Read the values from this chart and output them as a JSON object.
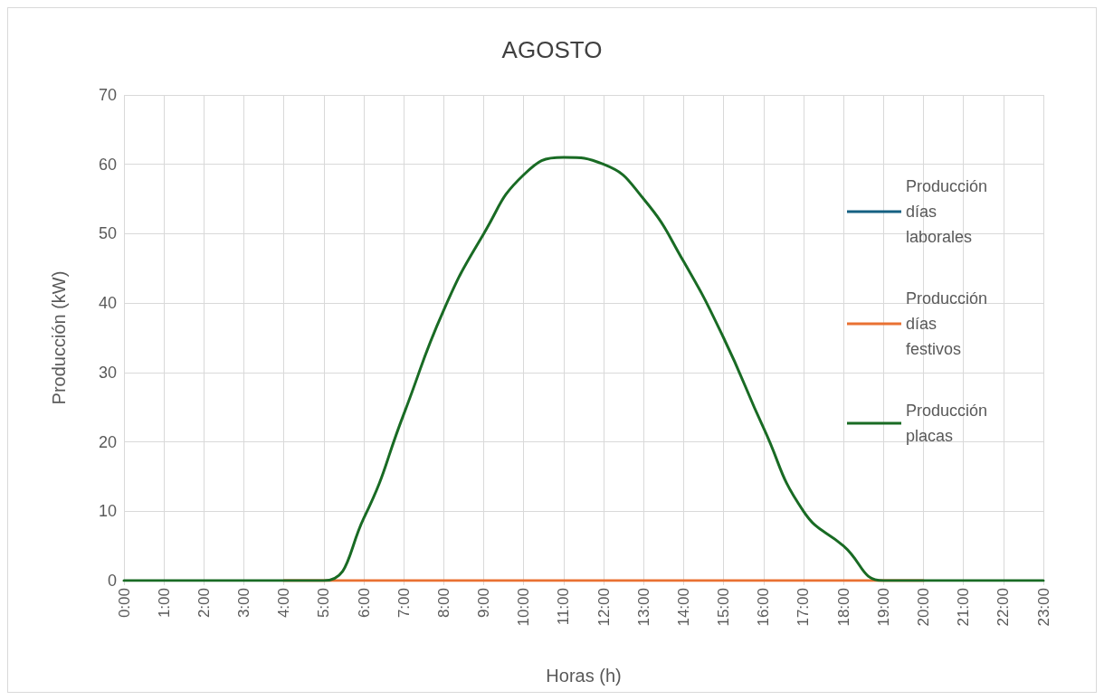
{
  "chart_data": {
    "type": "line",
    "title": "AGOSTO",
    "xlabel": "Horas (h)",
    "ylabel": "Producción (kW)",
    "categories": [
      "0:00",
      "1:00",
      "2:00",
      "3:00",
      "4:00",
      "5:00",
      "6:00",
      "7:00",
      "8:00",
      "9:00",
      "10:00",
      "11:00",
      "12:00",
      "13:00",
      "14:00",
      "15:00",
      "16:00",
      "17:00",
      "18:00",
      "19:00",
      "20:00",
      "21:00",
      "22:00",
      "23:00"
    ],
    "series": [
      {
        "name": "Producción días laborales",
        "color": "#156082",
        "values": [
          null,
          null,
          null,
          null,
          null,
          null,
          null,
          null,
          null,
          null,
          null,
          null,
          null,
          null,
          null,
          null,
          null,
          null,
          null,
          null,
          null,
          null,
          null,
          null
        ]
      },
      {
        "name": "Producción días festivos",
        "color": "#e97132",
        "values": [
          null,
          null,
          null,
          null,
          0,
          0,
          0,
          0,
          0,
          0,
          0,
          0,
          0,
          0,
          0,
          0,
          0,
          0,
          0,
          0,
          0,
          null,
          null,
          null
        ]
      },
      {
        "name": "Producción placas",
        "color": "#196b24",
        "values": [
          0,
          0,
          0,
          0,
          0,
          0,
          9,
          24,
          39,
          50,
          58.5,
          61,
          60,
          55,
          46,
          35,
          22,
          10,
          5,
          0,
          0,
          0,
          0,
          0
        ]
      }
    ],
    "ylim": [
      0,
      70
    ],
    "yticks": [
      0,
      10,
      20,
      30,
      40,
      50,
      60,
      70
    ],
    "grid": true,
    "legend": "right",
    "marker": "none",
    "line_style": "solid"
  }
}
